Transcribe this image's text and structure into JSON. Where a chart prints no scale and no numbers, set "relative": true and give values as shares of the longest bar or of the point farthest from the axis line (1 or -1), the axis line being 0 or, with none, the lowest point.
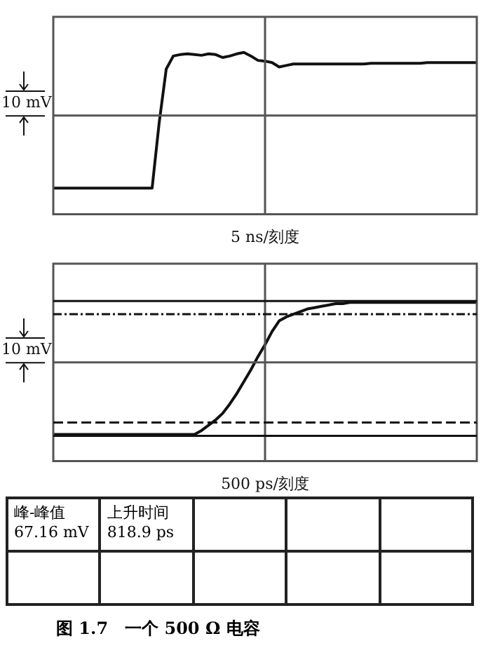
{
  "chart_data": [
    {
      "type": "line",
      "relative": true,
      "xlabel": "5 ns/刻度",
      "legend": false,
      "annotations": [
        "10 mV"
      ],
      "categories": [
        null,
        null,
        null,
        null,
        null,
        null,
        null,
        null,
        null,
        null,
        null,
        null,
        null,
        null,
        null,
        null,
        null,
        null,
        null,
        null,
        null,
        null,
        null,
        null,
        null,
        null,
        null,
        null,
        null,
        null,
        null,
        null,
        null,
        null,
        null,
        null,
        null,
        null,
        null,
        null,
        null,
        null,
        null,
        null,
        null,
        null,
        null,
        null,
        null,
        null,
        null,
        null,
        null,
        null,
        null,
        null,
        null,
        null,
        null,
        null,
        null
      ],
      "series": [
        {
          "color": "#111111",
          "values": [
            -1,
            -1,
            -1,
            -1,
            -1,
            -1,
            -1,
            -1,
            -1,
            -1,
            -1,
            -1,
            -1,
            -1,
            -1,
            -0.1,
            0.64,
            0.82,
            0.84,
            0.85,
            0.84,
            0.83,
            0.85,
            0.84,
            0.8,
            0.82,
            0.85,
            0.87,
            0.82,
            0.76,
            0.75,
            0.73,
            0.67,
            0.69,
            0.71,
            0.71,
            0.71,
            0.71,
            0.71,
            0.71,
            0.71,
            0.71,
            0.71,
            0.71,
            0.71,
            0.72,
            0.72,
            0.72,
            0.72,
            0.72,
            0.72,
            0.72,
            0.72,
            0.73,
            0.73,
            0.73,
            0.73,
            0.73,
            0.73,
            0.73,
            0.73
          ]
        }
      ]
    },
    {
      "type": "line",
      "relative": true,
      "xlabel": "500 ps/刻度",
      "legend": false,
      "annotations": [
        "10 mV"
      ],
      "categories": [
        null,
        null,
        null,
        null,
        null,
        null,
        null,
        null,
        null,
        null,
        null,
        null,
        null,
        null,
        null,
        null,
        null,
        null,
        null,
        null,
        null,
        null,
        null,
        null,
        null,
        null,
        null,
        null,
        null,
        null,
        null,
        null,
        null,
        null,
        null,
        null,
        null,
        null,
        null,
        null,
        null,
        null,
        null,
        null,
        null,
        null,
        null,
        null,
        null,
        null,
        null,
        null,
        null,
        null,
        null,
        null,
        null,
        null,
        null,
        null,
        null
      ],
      "series": [
        {
          "color": "#111111",
          "values": [
            0,
            0,
            0,
            0,
            0,
            0,
            0,
            0,
            0,
            0,
            0,
            0,
            0,
            0,
            0,
            0,
            0,
            0,
            0,
            0,
            0,
            0.03,
            0.07,
            0.11,
            0.16,
            0.23,
            0.31,
            0.4,
            0.49,
            0.59,
            0.68,
            0.78,
            0.86,
            0.89,
            0.91,
            0.93,
            0.95,
            0.96,
            0.97,
            0.98,
            0.99,
            0.99,
            1,
            1,
            1,
            1,
            1,
            1,
            1,
            1,
            1,
            1,
            1,
            1,
            1,
            1,
            1,
            1,
            1,
            1,
            1
          ]
        }
      ],
      "ref_lines": [
        {
          "axis": "y",
          "value": 1.01,
          "color": "#111111",
          "line_style": "solid"
        },
        {
          "axis": "y",
          "value": 0.91,
          "color": "#111111",
          "line_style": "dotted"
        },
        {
          "axis": "y",
          "value": 0.09,
          "color": "#111111",
          "line_style": "dashed"
        },
        {
          "axis": "y",
          "value": -0.01,
          "color": "#111111",
          "line_style": "solid"
        }
      ]
    },
    {
      "type": "other",
      "title": "图 1.7　一个 500 Ω 电容",
      "annotations": [
        "峰-峰值\n67.16 mV",
        "上升时间\n818.9 ps"
      ]
    }
  ]
}
